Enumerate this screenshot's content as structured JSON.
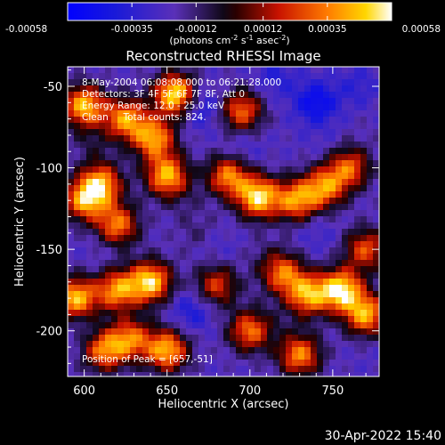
{
  "chart_data": {
    "type": "heatmap",
    "title": "Reconstructed RHESSI Image",
    "xlabel": "Heliocentric X (arcsec)",
    "ylabel": "Heliocentric Y (arcsec)",
    "xlim": [
      590,
      778
    ],
    "ylim": [
      -228,
      -38
    ],
    "x_ticks": [
      600,
      650,
      700,
      750
    ],
    "y_ticks": [
      -50,
      -100,
      -150,
      -200
    ],
    "colorbar": {
      "min": -0.00058,
      "max": 0.00058,
      "ticks": [
        "-0.00058",
        "-0.00035",
        "-0.00012",
        "0.00012",
        "0.00035",
        "0.00058"
      ],
      "label_main": "(photons cm",
      "label_exp1": "-2",
      "label_mid1": " s",
      "label_exp2": "-1",
      "label_mid2": " asec",
      "label_exp3": "-2",
      "label_end": ")"
    },
    "annotations": {
      "time": "8-May-2004 06:08:08.000 to 06:21:28.000",
      "detectors": "Detectors: 3F 4F 5F 6F 7F 8F, Att 0",
      "energy": "Energy Range: 12.0 - 25.0 keV",
      "clean": "Clean     Total counts: 824.",
      "peak": "Position of Peak = [657,-51]"
    },
    "footer_timestamp": "30-Apr-2022 15:40",
    "blobs": [
      {
        "x": 600,
        "y": -62,
        "v": 0.00046
      },
      {
        "x": 610,
        "y": -110,
        "v": 0.0004
      },
      {
        "x": 600,
        "y": -120,
        "v": 0.00036
      },
      {
        "x": 625,
        "y": -70,
        "v": 0.00038
      },
      {
        "x": 655,
        "y": -55,
        "v": 0.00056
      },
      {
        "x": 642,
        "y": -82,
        "v": 0.0004
      },
      {
        "x": 650,
        "y": -105,
        "v": 0.00044
      },
      {
        "x": 620,
        "y": -135,
        "v": 0.00034
      },
      {
        "x": 595,
        "y": -180,
        "v": 0.00046
      },
      {
        "x": 620,
        "y": -175,
        "v": 0.00038
      },
      {
        "x": 640,
        "y": -170,
        "v": 0.0005
      },
      {
        "x": 628,
        "y": -205,
        "v": 0.0003
      },
      {
        "x": 650,
        "y": -212,
        "v": 0.00044
      },
      {
        "x": 612,
        "y": -212,
        "v": 0.00034
      },
      {
        "x": 687,
        "y": -105,
        "v": 0.00036
      },
      {
        "x": 705,
        "y": -118,
        "v": 0.00052
      },
      {
        "x": 728,
        "y": -120,
        "v": 0.00036
      },
      {
        "x": 745,
        "y": -112,
        "v": 0.00034
      },
      {
        "x": 760,
        "y": -100,
        "v": 0.00028
      },
      {
        "x": 695,
        "y": -65,
        "v": 0.0003
      },
      {
        "x": 720,
        "y": -165,
        "v": 0.0003
      },
      {
        "x": 755,
        "y": -175,
        "v": 0.00054
      },
      {
        "x": 770,
        "y": -190,
        "v": 0.00042
      },
      {
        "x": 735,
        "y": -178,
        "v": 0.0004
      },
      {
        "x": 700,
        "y": -200,
        "v": 0.00032
      },
      {
        "x": 730,
        "y": -215,
        "v": 0.00036
      },
      {
        "x": 770,
        "y": -150,
        "v": 0.00026
      },
      {
        "x": 680,
        "y": -172,
        "v": 0.00022
      },
      {
        "x": 668,
        "y": -140,
        "v": -0.00012
      },
      {
        "x": 670,
        "y": -62,
        "v": -0.00044
      },
      {
        "x": 715,
        "y": -45,
        "v": -0.00036
      },
      {
        "x": 740,
        "y": -60,
        "v": -0.00052
      },
      {
        "x": 765,
        "y": -50,
        "v": -0.00034
      },
      {
        "x": 695,
        "y": -90,
        "v": -0.00032
      },
      {
        "x": 745,
        "y": -85,
        "v": -0.00026
      },
      {
        "x": 740,
        "y": -140,
        "v": -0.0003
      },
      {
        "x": 680,
        "y": -150,
        "v": -0.00028
      },
      {
        "x": 630,
        "y": -155,
        "v": -0.00022
      },
      {
        "x": 610,
        "y": -150,
        "v": -0.00026
      },
      {
        "x": 665,
        "y": -188,
        "v": -0.0004
      },
      {
        "x": 690,
        "y": -210,
        "v": -0.00022
      },
      {
        "x": 600,
        "y": -200,
        "v": -0.00026
      },
      {
        "x": 775,
        "y": -215,
        "v": -0.00024
      },
      {
        "x": 720,
        "y": -195,
        "v": -0.00018
      },
      {
        "x": 660,
        "y": -120,
        "v": -0.00016
      },
      {
        "x": 605,
        "y": -85,
        "v": -0.0001
      },
      {
        "x": 770,
        "y": -75,
        "v": -0.0002
      },
      {
        "x": 710,
        "y": -155,
        "v": -0.00014
      }
    ]
  }
}
